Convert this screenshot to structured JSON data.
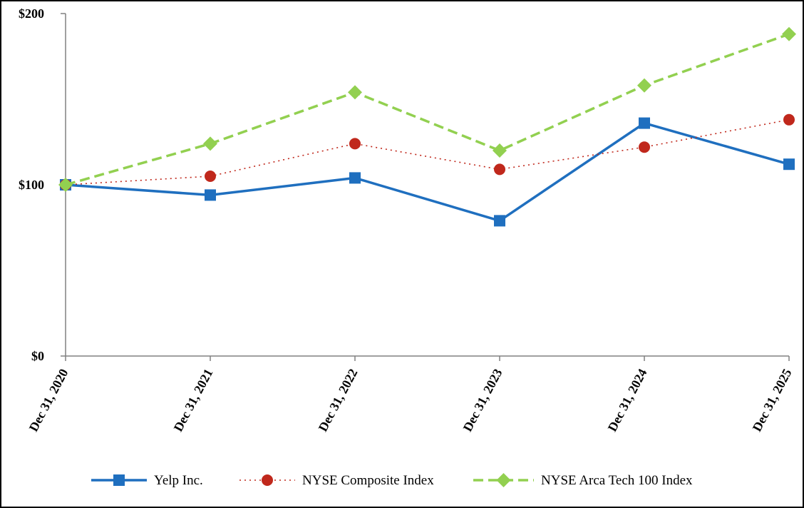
{
  "chart_data": {
    "type": "line",
    "categories": [
      "Dec 31, 2020",
      "Dec 31, 2021",
      "Dec 31, 2022",
      "Dec 31, 2023",
      "Dec 31, 2024",
      "Dec 31, 2025"
    ],
    "y_ticks": [
      {
        "value": 0,
        "label": "$0"
      },
      {
        "value": 100,
        "label": "$100"
      },
      {
        "value": 200,
        "label": "$200"
      }
    ],
    "ylim": [
      0,
      200
    ],
    "grid": false,
    "legend_position": "bottom",
    "series": [
      {
        "name": "Yelp Inc.",
        "values": [
          100,
          94,
          104,
          79,
          136,
          112
        ],
        "color": "#1F6FBF",
        "marker": "square",
        "line_style": "solid"
      },
      {
        "name": "NYSE Composite Index",
        "values": [
          100,
          105,
          124,
          109,
          122,
          138
        ],
        "color": "#C0281C",
        "marker": "circle",
        "line_style": "dotted"
      },
      {
        "name": "NYSE Arca Tech 100 Index",
        "values": [
          100,
          124,
          154,
          120,
          158,
          188
        ],
        "color": "#92D050",
        "marker": "diamond",
        "line_style": "dashed"
      }
    ]
  }
}
